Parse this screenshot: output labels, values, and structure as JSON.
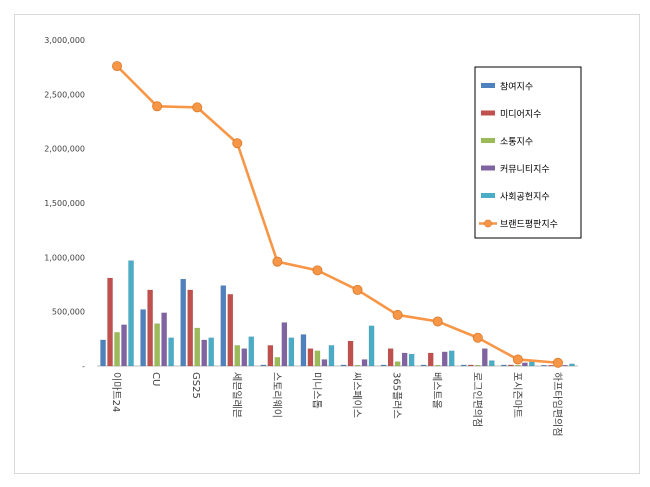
{
  "chart_data": {
    "type": "bar",
    "title": "",
    "xlabel": "",
    "ylabel": "",
    "ylim": [
      0,
      3000000
    ],
    "yticks": [
      "-",
      "500,000",
      "1,000,000",
      "1,500,000",
      "2,000,000",
      "2,500,000",
      "3,000,000"
    ],
    "grid": false,
    "legend_position": "top-right",
    "categories": [
      "이마트24",
      "CU",
      "GS25",
      "세븐일레븐",
      "스토리웨이",
      "미니스톱",
      "씨스페이스",
      "365플러스",
      "베스트올",
      "로그인편의점",
      "포시즌마트",
      "하프타임편의점"
    ],
    "series": [
      {
        "name": "참여지수",
        "type": "bar",
        "color": "#4f81bd",
        "values": [
          240000,
          520000,
          800000,
          740000,
          10000,
          290000,
          10000,
          10000,
          10000,
          10000,
          10000,
          5000
        ]
      },
      {
        "name": "미디어지수",
        "type": "bar",
        "color": "#c0504d",
        "values": [
          810000,
          700000,
          700000,
          660000,
          190000,
          160000,
          230000,
          160000,
          120000,
          10000,
          10000,
          5000
        ]
      },
      {
        "name": "소통지수",
        "type": "bar",
        "color": "#9bbb59",
        "values": [
          310000,
          390000,
          350000,
          190000,
          80000,
          140000,
          0,
          40000,
          0,
          0,
          0,
          0
        ]
      },
      {
        "name": "커뮤니티지수",
        "type": "bar",
        "color": "#8064a2",
        "values": [
          380000,
          490000,
          240000,
          160000,
          400000,
          60000,
          60000,
          120000,
          130000,
          160000,
          30000,
          0
        ]
      },
      {
        "name": "사회공헌지수",
        "type": "bar",
        "color": "#4bacc6",
        "values": [
          970000,
          260000,
          260000,
          270000,
          260000,
          190000,
          370000,
          110000,
          140000,
          50000,
          40000,
          20000
        ]
      },
      {
        "name": "브랜드평판지수",
        "type": "line",
        "color": "#f79646",
        "values": [
          2760000,
          2390000,
          2380000,
          2050000,
          960000,
          880000,
          700000,
          470000,
          410000,
          260000,
          60000,
          30000
        ]
      }
    ]
  }
}
